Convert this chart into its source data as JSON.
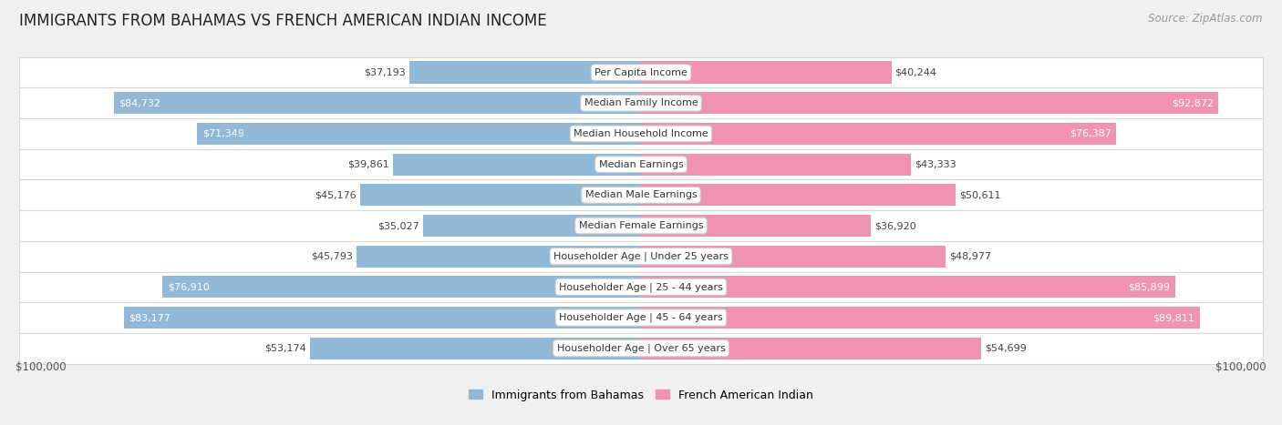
{
  "title": "IMMIGRANTS FROM BAHAMAS VS FRENCH AMERICAN INDIAN INCOME",
  "source": "Source: ZipAtlas.com",
  "categories": [
    "Per Capita Income",
    "Median Family Income",
    "Median Household Income",
    "Median Earnings",
    "Median Male Earnings",
    "Median Female Earnings",
    "Householder Age | Under 25 years",
    "Householder Age | 25 - 44 years",
    "Householder Age | 45 - 64 years",
    "Householder Age | Over 65 years"
  ],
  "bahamas_values": [
    37193,
    84732,
    71349,
    39861,
    45176,
    35027,
    45793,
    76910,
    83177,
    53174
  ],
  "french_values": [
    40244,
    92872,
    76387,
    43333,
    50611,
    36920,
    48977,
    85899,
    89811,
    54699
  ],
  "bahamas_labels": [
    "$37,193",
    "$84,732",
    "$71,349",
    "$39,861",
    "$45,176",
    "$35,027",
    "$45,793",
    "$76,910",
    "$83,177",
    "$53,174"
  ],
  "french_labels": [
    "$40,244",
    "$92,872",
    "$76,387",
    "$43,333",
    "$50,611",
    "$36,920",
    "$48,977",
    "$85,899",
    "$89,811",
    "$54,699"
  ],
  "max_value": 100000,
  "bahamas_color": "#92b8d8",
  "french_color": "#f093b0",
  "bg_color": "#f0f0f0",
  "row_bg_color": "#ffffff",
  "row_border_color": "#d8d8d8",
  "legend_bahamas": "Immigrants from Bahamas",
  "legend_french": "French American Indian",
  "xlabel_left": "$100,000",
  "xlabel_right": "$100,000",
  "title_fontsize": 12,
  "source_fontsize": 8.5,
  "value_fontsize": 8,
  "cat_fontsize": 8,
  "bar_height": 0.72,
  "inside_label_threshold": 55000
}
